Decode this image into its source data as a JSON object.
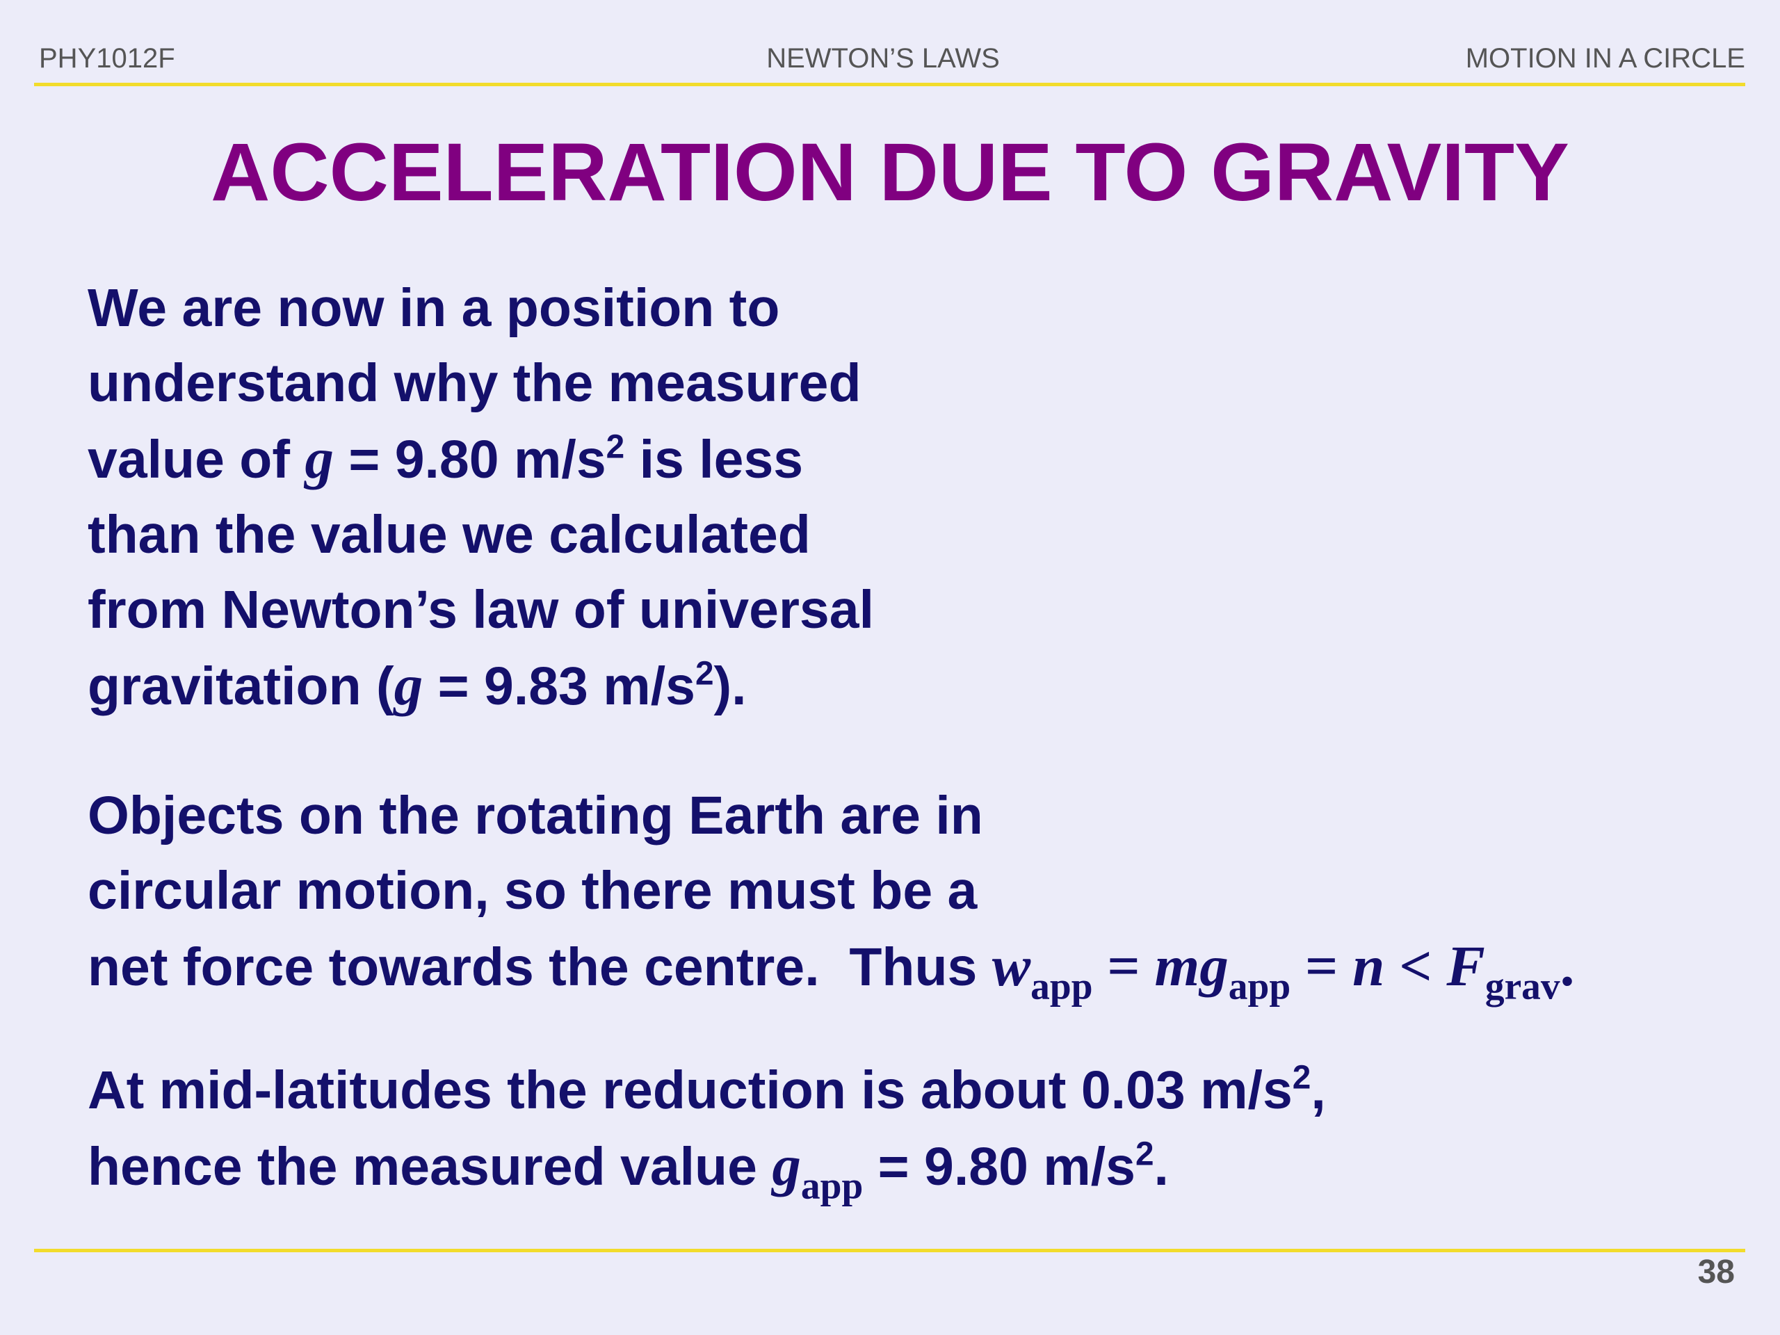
{
  "header": {
    "course": "PHY1012F",
    "topic": "NEWTON’S LAWS",
    "section": "MOTION IN A CIRCLE"
  },
  "title": "ACCELERATION DUE TO GRAVITY",
  "paragraphs": [
    [
      "We are now in a position to",
      "understand why the measured",
      "value of ",
      "g",
      " = 9.80 m/s",
      "2",
      " is less",
      "than the value we calculated",
      "from Newton’s law of universal",
      "gravitation (",
      "g",
      " = 9.83 m/s",
      "2",
      ")."
    ],
    [
      "Objects on the rotating Earth are in",
      "circular motion, so there must be a",
      "net force towards the centre.  Thus ",
      "w",
      "app",
      " = ",
      "mg",
      "app",
      " = ",
      "n",
      " < ",
      "F",
      "grav",
      "."
    ],
    [
      "At mid-latitudes the reduction is about 0.03 m/s",
      "2",
      ",",
      "hence the measured value ",
      "g",
      "app",
      " = 9.80 m/s",
      "2",
      "."
    ]
  ],
  "page_number": 38
}
